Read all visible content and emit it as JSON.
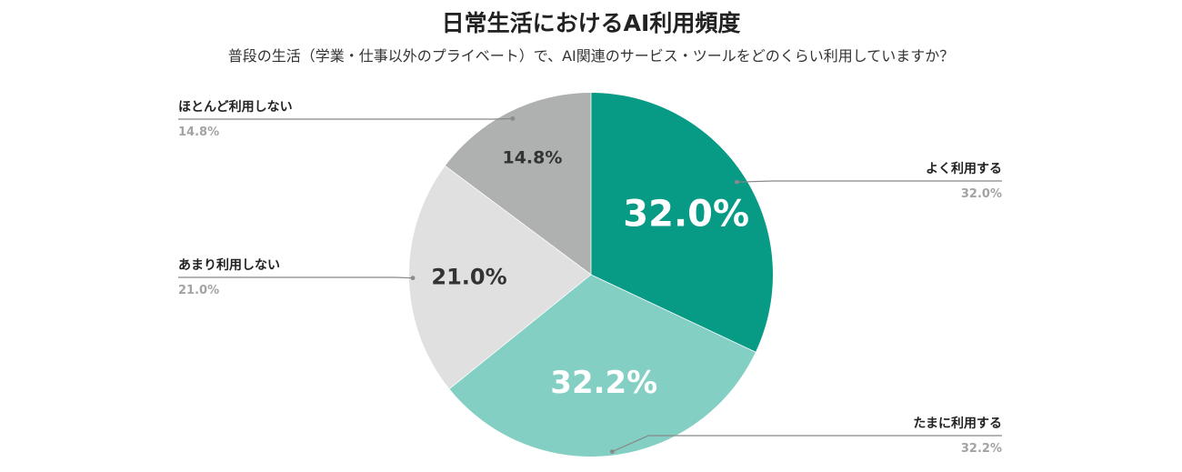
{
  "chart_data": {
    "type": "pie",
    "title": "日常生活におけるAI利用頻度",
    "subtitle": "普段の生活（学業・仕事以外のプライベート）で、AI関連のサービス・ツールをどのくらい利用していますか？",
    "slices": [
      {
        "label": "よく利用する",
        "value": 32.0,
        "display": "32.0%",
        "color": "#079a85",
        "text_color": "#ffffff"
      },
      {
        "label": "たまに利用する",
        "value": 32.2,
        "display": "32.2%",
        "color": "#83cfc3",
        "text_color": "#ffffff"
      },
      {
        "label": "あまり利用しない",
        "value": 21.0,
        "display": "21.0%",
        "color": "#dfe0df",
        "text_color": "#333333"
      },
      {
        "label": "ほとんど利用しない",
        "value": 14.8,
        "display": "14.8%",
        "color": "#afb1b0",
        "text_color": "#333333"
      }
    ],
    "start": "12 o'clock",
    "direction": "clockwise"
  }
}
